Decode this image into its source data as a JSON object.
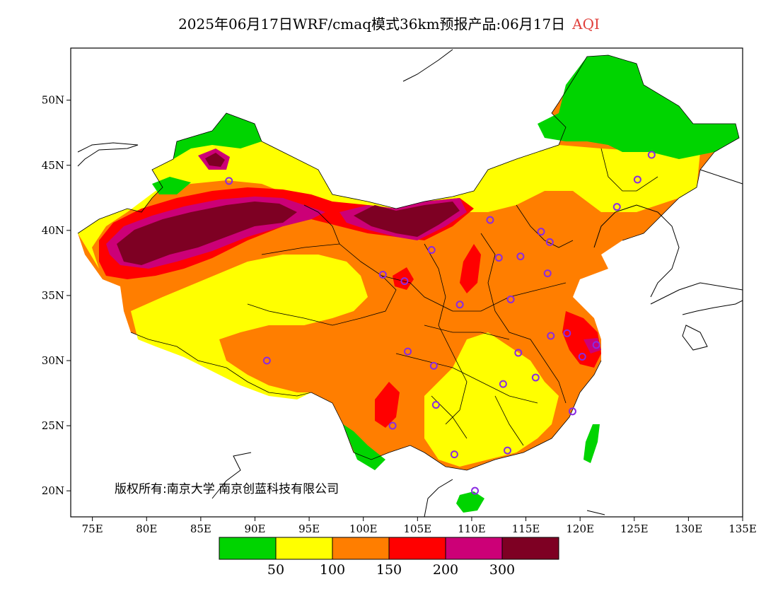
{
  "title": {
    "main": "2025年06月17日WRF/cmaq模式36km预报产品:06月17日",
    "variable": "AQI"
  },
  "axes": {
    "lat_labels": [
      "50N",
      "45N",
      "40N",
      "35N",
      "30N",
      "25N",
      "20N"
    ],
    "lon_labels": [
      "75E",
      "80E",
      "85E",
      "90E",
      "95E",
      "100E",
      "105E",
      "110E",
      "115E",
      "120E",
      "125E",
      "130E",
      "135E"
    ],
    "lon_range": [
      73,
      135
    ],
    "lat_range": [
      18,
      54
    ]
  },
  "copyright": "版权所有:南京大学  南京创蓝科技有限公司",
  "colorbar": {
    "colors": [
      "#00d400",
      "#ffff00",
      "#ff7e00",
      "#ff0000",
      "#cc0077",
      "#7e0023"
    ],
    "labels": [
      "50",
      "100",
      "150",
      "200",
      "300"
    ]
  },
  "stations": [
    {
      "lon": 126.6,
      "lat": 45.8
    },
    {
      "lon": 125.3,
      "lat": 43.9
    },
    {
      "lon": 123.4,
      "lat": 41.8
    },
    {
      "lon": 87.6,
      "lat": 43.8
    },
    {
      "lon": 111.7,
      "lat": 40.8
    },
    {
      "lon": 116.4,
      "lat": 39.9
    },
    {
      "lon": 117.2,
      "lat": 39.1
    },
    {
      "lon": 106.3,
      "lat": 38.5
    },
    {
      "lon": 112.5,
      "lat": 37.9
    },
    {
      "lon": 114.5,
      "lat": 38.0
    },
    {
      "lon": 117.0,
      "lat": 36.7
    },
    {
      "lon": 101.8,
      "lat": 36.6
    },
    {
      "lon": 103.8,
      "lat": 36.1
    },
    {
      "lon": 113.6,
      "lat": 34.7
    },
    {
      "lon": 108.9,
      "lat": 34.3
    },
    {
      "lon": 117.3,
      "lat": 31.9
    },
    {
      "lon": 118.8,
      "lat": 32.1
    },
    {
      "lon": 120.2,
      "lat": 30.3
    },
    {
      "lon": 121.5,
      "lat": 31.2
    },
    {
      "lon": 114.3,
      "lat": 30.6
    },
    {
      "lon": 104.1,
      "lat": 30.7
    },
    {
      "lon": 106.5,
      "lat": 29.6
    },
    {
      "lon": 91.1,
      "lat": 30.0
    },
    {
      "lon": 115.9,
      "lat": 28.7
    },
    {
      "lon": 112.9,
      "lat": 28.2
    },
    {
      "lon": 106.7,
      "lat": 26.6
    },
    {
      "lon": 119.3,
      "lat": 26.1
    },
    {
      "lon": 102.7,
      "lat": 25.0
    },
    {
      "lon": 113.3,
      "lat": 23.1
    },
    {
      "lon": 108.4,
      "lat": 22.8
    },
    {
      "lon": 110.3,
      "lat": 20.0
    }
  ]
}
